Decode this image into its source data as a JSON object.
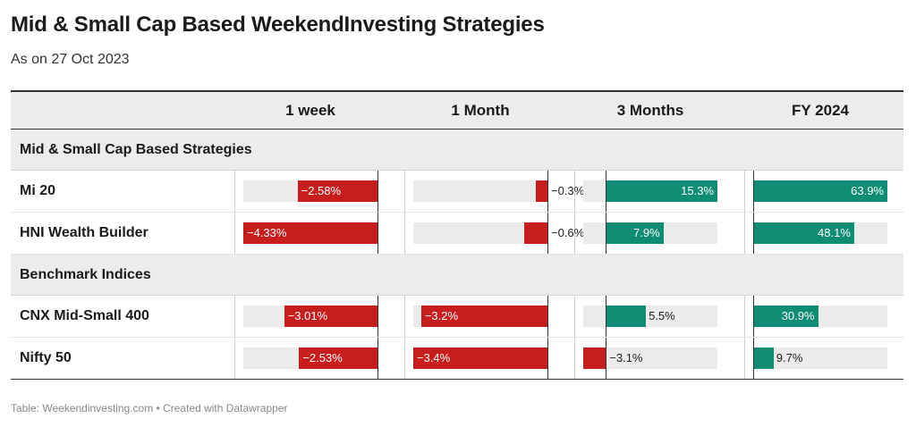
{
  "title": "Mid & Small Cap Based WeekendInvesting Strategies",
  "subtitle": "As on 27 Oct 2023",
  "footer": "Table: Weekendinvesting.com • Created with Datawrapper",
  "colors": {
    "negative": "#c71e1d",
    "positive": "#0f8c74",
    "track": "#ebebeb",
    "header_bg": "#ececec"
  },
  "chart_data": {
    "type": "table",
    "columns": [
      "1 week",
      "1 Month",
      "3 Months",
      "FY 2024"
    ],
    "column_ranges": [
      [
        -4.33,
        0
      ],
      [
        -3.4,
        0
      ],
      [
        -3.1,
        15.3
      ],
      [
        0,
        63.9
      ]
    ],
    "groups": [
      {
        "name": "Mid & Small Cap Based Strategies",
        "rows": [
          {
            "name": "Mi 20",
            "values": [
              -2.58,
              -0.3,
              15.3,
              63.9
            ],
            "labels": [
              "−2.58%",
              "−0.3%",
              "15.3%",
              "63.9%"
            ]
          },
          {
            "name": "HNI Wealth Builder",
            "values": [
              -4.33,
              -0.6,
              7.9,
              48.1
            ],
            "labels": [
              "−4.33%",
              "−0.6%",
              "7.9%",
              "48.1%"
            ]
          }
        ]
      },
      {
        "name": "Benchmark Indices",
        "rows": [
          {
            "name": "CNX Mid-Small 400",
            "values": [
              -3.01,
              -3.2,
              5.5,
              30.9
            ],
            "labels": [
              "−3.01%",
              "−3.2%",
              "5.5%",
              "30.9%"
            ]
          },
          {
            "name": "Nifty 50",
            "values": [
              -2.53,
              -3.4,
              -3.1,
              9.7
            ],
            "labels": [
              "−2.53%",
              "−3.4%",
              "−3.1%",
              "9.7%"
            ]
          }
        ]
      }
    ]
  }
}
